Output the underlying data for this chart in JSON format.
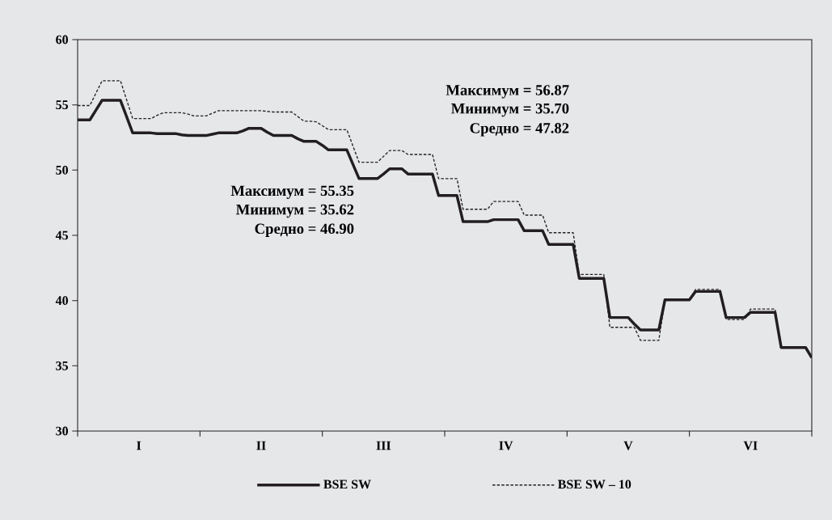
{
  "chart_data": {
    "type": "line",
    "ylim": [
      30,
      60
    ],
    "categories": [
      null,
      null,
      null,
      null,
      null,
      null,
      null,
      null,
      null,
      null,
      "I",
      null,
      null,
      null,
      null,
      null,
      null,
      null,
      null,
      null,
      null,
      null,
      null,
      null,
      null,
      null,
      null,
      null,
      null,
      null,
      "II",
      null,
      null,
      null,
      null,
      null,
      null,
      null,
      null,
      null,
      null,
      null,
      null,
      null,
      null,
      null,
      null,
      null,
      null,
      null,
      "III",
      null,
      null,
      null,
      null,
      null,
      null,
      null,
      null,
      null,
      null,
      null,
      null,
      null,
      null,
      null,
      null,
      null,
      null,
      null,
      "IV",
      null,
      null,
      null,
      null,
      null,
      null,
      null,
      null,
      null,
      null,
      null,
      null,
      null,
      null,
      null,
      null,
      null,
      null,
      null,
      "V",
      null,
      null,
      null,
      null,
      null,
      null,
      null,
      null,
      null,
      null,
      null,
      null,
      null,
      null,
      null,
      null,
      null,
      null,
      null,
      "VI",
      null,
      null,
      null,
      null,
      null,
      null,
      null,
      null,
      null,
      null
    ],
    "yticks": [
      30,
      35,
      40,
      45,
      50,
      55,
      60
    ],
    "legend": "bottom",
    "marker": "none",
    "series": [
      {
        "name": "BSE SW",
        "color": "#231f20",
        "line_style": "solid",
        "values": [
          53.85,
          53.85,
          53.85,
          54.6,
          55.35,
          55.35,
          55.35,
          55.35,
          54.1,
          52.85,
          52.85,
          52.85,
          52.85,
          52.8,
          52.8,
          52.8,
          52.8,
          52.7,
          52.65,
          52.65,
          52.65,
          52.65,
          52.75,
          52.85,
          52.85,
          52.85,
          52.85,
          53.0,
          53.2,
          53.2,
          53.2,
          52.9,
          52.65,
          52.65,
          52.65,
          52.65,
          52.4,
          52.2,
          52.2,
          52.2,
          51.9,
          51.55,
          51.55,
          51.55,
          51.55,
          50.45,
          49.35,
          49.35,
          49.35,
          49.35,
          49.7,
          50.1,
          50.1,
          50.1,
          49.7,
          49.7,
          49.7,
          49.7,
          49.7,
          48.05,
          48.05,
          48.05,
          48.05,
          46.05,
          46.05,
          46.05,
          46.05,
          46.05,
          46.2,
          46.2,
          46.2,
          46.2,
          46.2,
          45.35,
          45.35,
          45.35,
          45.35,
          44.3,
          44.3,
          44.3,
          44.3,
          44.3,
          41.7,
          41.7,
          41.7,
          41.7,
          41.7,
          38.7,
          38.7,
          38.7,
          38.7,
          38.2,
          37.75,
          37.75,
          37.75,
          37.75,
          40.05,
          40.05,
          40.05,
          40.05,
          40.05,
          40.7,
          40.7,
          40.7,
          40.7,
          40.7,
          38.7,
          38.7,
          38.7,
          38.7,
          39.1,
          39.1,
          39.1,
          39.1,
          39.1,
          36.4,
          36.4,
          36.4,
          36.4,
          36.4,
          35.62
        ]
      },
      {
        "name": "BSE SW – 10",
        "color": "#231f20",
        "line_style": "dashed",
        "values": [
          54.95,
          54.95,
          54.95,
          55.9,
          56.85,
          56.85,
          56.85,
          56.85,
          55.4,
          53.95,
          53.95,
          53.95,
          53.95,
          54.2,
          54.4,
          54.4,
          54.4,
          54.4,
          54.3,
          54.15,
          54.15,
          54.15,
          54.35,
          54.55,
          54.55,
          54.55,
          54.55,
          54.55,
          54.55,
          54.55,
          54.55,
          54.5,
          54.45,
          54.45,
          54.45,
          54.45,
          54.1,
          53.75,
          53.75,
          53.7,
          53.4,
          53.1,
          53.1,
          53.1,
          53.1,
          51.85,
          50.6,
          50.6,
          50.6,
          50.6,
          51.05,
          51.5,
          51.5,
          51.5,
          51.2,
          51.2,
          51.2,
          51.2,
          51.2,
          49.35,
          49.35,
          49.35,
          49.35,
          47.0,
          47.0,
          47.0,
          47.0,
          47.0,
          47.6,
          47.6,
          47.6,
          47.6,
          47.6,
          46.55,
          46.55,
          46.55,
          46.55,
          45.2,
          45.2,
          45.2,
          45.2,
          45.2,
          42.0,
          42.0,
          42.0,
          42.0,
          42.0,
          37.95,
          37.95,
          37.95,
          37.95,
          37.95,
          36.95,
          36.95,
          36.95,
          36.95,
          40.05,
          40.05,
          40.05,
          40.05,
          40.05,
          40.85,
          40.85,
          40.85,
          40.85,
          40.85,
          38.55,
          38.55,
          38.55,
          38.55,
          39.35,
          39.35,
          39.35,
          39.35,
          39.35,
          36.4,
          36.4,
          36.4,
          36.4,
          36.4,
          35.7
        ]
      }
    ],
    "annotations": [
      "Максимум = 56.87",
      "Минимум = 35.70",
      "Средно = 47.82",
      "Максимум = 55.35",
      "Минимум = 35.62",
      "Средно = 46.90"
    ]
  }
}
